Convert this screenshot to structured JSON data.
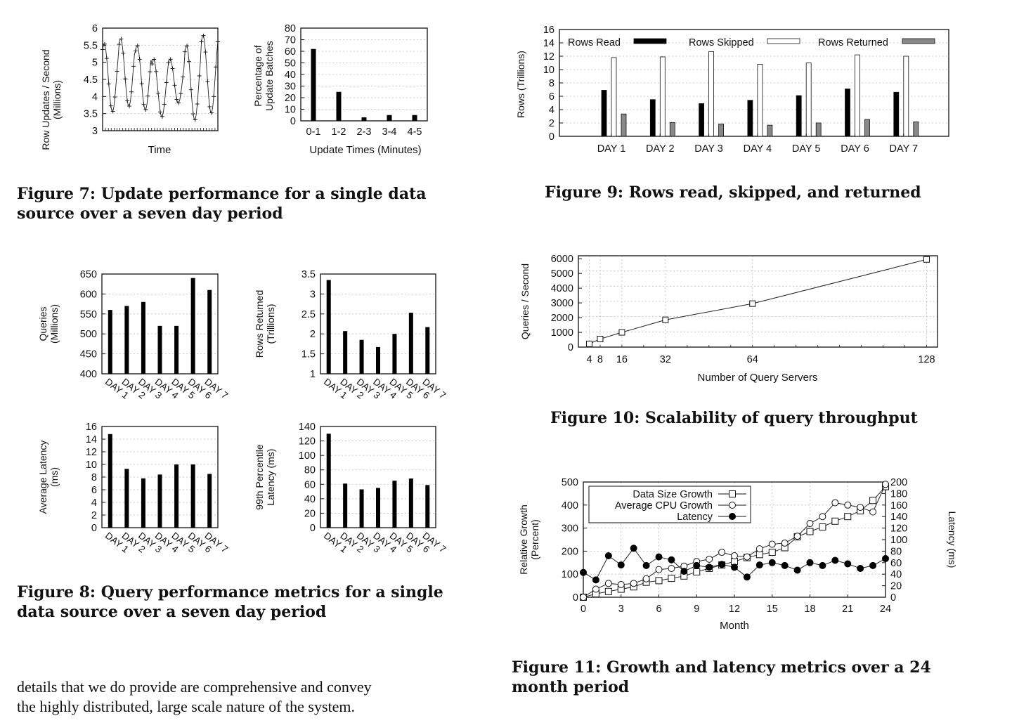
{
  "charts": {
    "fig7a": {
      "type": "line",
      "ylabel_lines": [
        "Row Updates / Second",
        "(Millions)"
      ],
      "xlabel": "Time",
      "yticks": [
        "3",
        "3.5",
        "4",
        "4.5",
        "5",
        "5.5",
        "6"
      ],
      "ylim": [
        3,
        6
      ],
      "peaks": [
        5.55,
        5.7,
        5.5,
        5.1,
        5.1,
        5.5,
        5.8
      ],
      "troughs": [
        3.55,
        3.7,
        3.6,
        3.4,
        3.8,
        3.3,
        3.5
      ]
    },
    "fig7b": {
      "type": "bar",
      "ylabel_lines": [
        "Percentage of",
        "Update Batches"
      ],
      "xlabel": "Update Times (Minutes)",
      "categories": [
        "0-1",
        "1-2",
        "2-3",
        "3-4",
        "4-5"
      ],
      "values": [
        62,
        25,
        3,
        5,
        5
      ],
      "yticks": [
        "0",
        "10",
        "20",
        "30",
        "40",
        "50",
        "60",
        "70",
        "80"
      ],
      "ylim": [
        0,
        80
      ]
    },
    "fig8a": {
      "type": "bar",
      "ylabel_lines": [
        "Queries",
        "(Millions)"
      ],
      "categories": [
        "DAY 1",
        "DAY 2",
        "DAY 3",
        "DAY 4",
        "DAY 5",
        "DAY 6",
        "DAY 7"
      ],
      "values": [
        560,
        570,
        580,
        520,
        520,
        640,
        610
      ],
      "yticks": [
        "400",
        "450",
        "500",
        "550",
        "600",
        "650"
      ],
      "ylim": [
        400,
        650
      ]
    },
    "fig8b": {
      "type": "bar",
      "ylabel_lines": [
        "Rows Returned",
        "(Trillions)"
      ],
      "categories": [
        "DAY 1",
        "DAY 2",
        "DAY 3",
        "DAY 4",
        "DAY 5",
        "DAY 6",
        "DAY 7"
      ],
      "values": [
        3.35,
        2.07,
        1.85,
        1.67,
        2.0,
        2.53,
        2.17
      ],
      "yticks": [
        "1",
        "1.5",
        "2",
        "2.5",
        "3",
        "3.5"
      ],
      "ylim": [
        1,
        3.5
      ]
    },
    "fig8c": {
      "type": "bar",
      "ylabel_lines": [
        "Average Latency",
        "(ms)"
      ],
      "categories": [
        "DAY 1",
        "DAY 2",
        "DAY 3",
        "DAY 4",
        "DAY 5",
        "DAY 6",
        "DAY 7"
      ],
      "values": [
        14.8,
        9.3,
        7.8,
        8.4,
        10.0,
        10.0,
        8.5
      ],
      "yticks": [
        "0",
        "2",
        "4",
        "6",
        "8",
        "10",
        "12",
        "14",
        "16"
      ],
      "ylim": [
        0,
        16
      ]
    },
    "fig8d": {
      "type": "bar",
      "ylabel_lines": [
        "99th Percentile",
        "Latency (ms)"
      ],
      "categories": [
        "DAY 1",
        "DAY 2",
        "DAY 3",
        "DAY 4",
        "DAY 5",
        "DAY 6",
        "DAY 7"
      ],
      "values": [
        130,
        61,
        53,
        55,
        65,
        68,
        59
      ],
      "yticks": [
        "0",
        "20",
        "40",
        "60",
        "80",
        "100",
        "120",
        "140"
      ],
      "ylim": [
        0,
        140
      ]
    },
    "fig9": {
      "type": "bar",
      "ylabel_lines": [
        "Rows (Trillions)"
      ],
      "categories": [
        "DAY 1",
        "DAY 2",
        "DAY 3",
        "DAY 4",
        "DAY 5",
        "DAY 6",
        "DAY 7"
      ],
      "series": [
        {
          "name": "Rows Read",
          "values": [
            6.9,
            5.5,
            4.9,
            5.4,
            6.1,
            7.1,
            6.6
          ]
        },
        {
          "name": "Rows Skipped",
          "values": [
            11.8,
            11.9,
            12.7,
            10.8,
            11.0,
            12.2,
            12.0
          ]
        },
        {
          "name": "Rows Returned",
          "values": [
            3.35,
            2.07,
            1.85,
            1.67,
            2.0,
            2.53,
            2.17
          ]
        }
      ],
      "yticks": [
        "0",
        "2",
        "4",
        "6",
        "8",
        "10",
        "12",
        "14",
        "16"
      ],
      "ylim": [
        0,
        16
      ]
    },
    "fig10": {
      "type": "line",
      "ylabel_lines": [
        "Queries / Second"
      ],
      "xlabel": "Number of Query Servers",
      "x": [
        4,
        8,
        16,
        32,
        64,
        128
      ],
      "y": [
        220,
        550,
        1000,
        1850,
        2950,
        5950
      ],
      "xticks": [
        "4",
        "8",
        "16",
        "32",
        "64",
        "128"
      ],
      "yticks": [
        "0",
        "1000",
        "2000",
        "3000",
        "4000",
        "5000",
        "6000"
      ],
      "xlim": [
        0,
        132
      ],
      "ylim": [
        0,
        6200
      ]
    },
    "fig11": {
      "type": "line",
      "ylabel_lines": [
        "Relative Growth",
        "(Percent)"
      ],
      "y2label": "Latency (ms)",
      "xlabel": "Month",
      "xticks": [
        "0",
        "3",
        "6",
        "9",
        "12",
        "15",
        "18",
        "21",
        "24"
      ],
      "yticks": [
        "0",
        "100",
        "200",
        "300",
        "400",
        "500"
      ],
      "y2ticks": [
        "0",
        "20",
        "40",
        "60",
        "80",
        "100",
        "120",
        "140",
        "160",
        "180",
        "200"
      ],
      "xlim": [
        0,
        24
      ],
      "ylim": [
        0,
        500
      ],
      "y2lim": [
        0,
        200
      ],
      "series": [
        {
          "name": "Data Size Growth",
          "axis": "left",
          "values": [
            0,
            15,
            25,
            35,
            45,
            65,
            72,
            82,
            92,
            110,
            125,
            140,
            155,
            172,
            185,
            195,
            215,
            262,
            285,
            305,
            330,
            350,
            375,
            420,
            480
          ]
        },
        {
          "name": "Average CPU Growth",
          "axis": "left",
          "values": [
            0,
            35,
            60,
            55,
            60,
            80,
            120,
            125,
            135,
            155,
            165,
            195,
            180,
            175,
            210,
            230,
            235,
            265,
            320,
            350,
            410,
            400,
            390,
            370,
            490
          ]
        },
        {
          "name": "Latency",
          "axis": "right",
          "values": [
            43,
            30,
            72,
            56,
            85,
            55,
            70,
            65,
            45,
            55,
            52,
            57,
            52,
            35,
            56,
            60,
            55,
            47,
            60,
            55,
            64,
            58,
            50,
            55,
            67
          ]
        }
      ]
    }
  },
  "captions": {
    "fig7": [
      "Figure 7:  Update performance for a single data",
      "source over a seven day period"
    ],
    "fig8": [
      "Figure 8:  Query performance metrics for a single",
      "data source over a seven day period"
    ],
    "fig9": "Figure 9: Rows read, skipped, and returned",
    "fig10": "Figure 10: Scalability of query throughput",
    "fig11": [
      "Figure 11:  Growth and latency metrics over a 24",
      "month period"
    ]
  },
  "body_text": [
    "details that we do provide are comprehensive and convey",
    "the highly distributed, large scale nature of the system."
  ]
}
